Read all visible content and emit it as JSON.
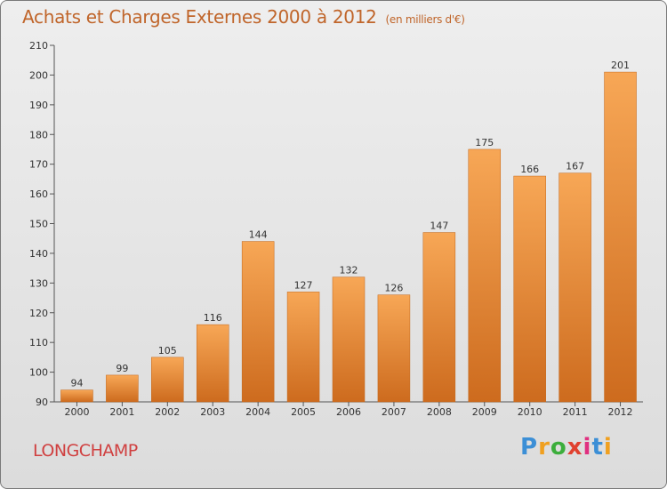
{
  "header": {
    "title": "Achats et Charges Externes 2000 à 2012",
    "subtitle": "(en milliers d'€)"
  },
  "footer": {
    "commune": "LONGCHAMP",
    "logo_text": "Proxiti"
  },
  "colors": {
    "bar_top": "#f7a756",
    "bar_bottom": "#cd6b1e",
    "title": "#c0652a",
    "commune": "#d04040"
  },
  "chart_data": {
    "type": "bar",
    "title": "Achats et Charges Externes 2000 à 2012",
    "subtitle": "(en milliers d'€)",
    "categories": [
      "2000",
      "2001",
      "2002",
      "2003",
      "2004",
      "2005",
      "2006",
      "2007",
      "2008",
      "2009",
      "2010",
      "2011",
      "2012"
    ],
    "values": [
      94,
      99,
      105,
      116,
      144,
      127,
      132,
      126,
      147,
      175,
      166,
      167,
      201
    ],
    "ylim": [
      90,
      210
    ],
    "yticks": [
      90,
      100,
      110,
      120,
      130,
      140,
      150,
      160,
      170,
      180,
      190,
      200,
      210
    ],
    "grid": false,
    "legend": "none"
  }
}
